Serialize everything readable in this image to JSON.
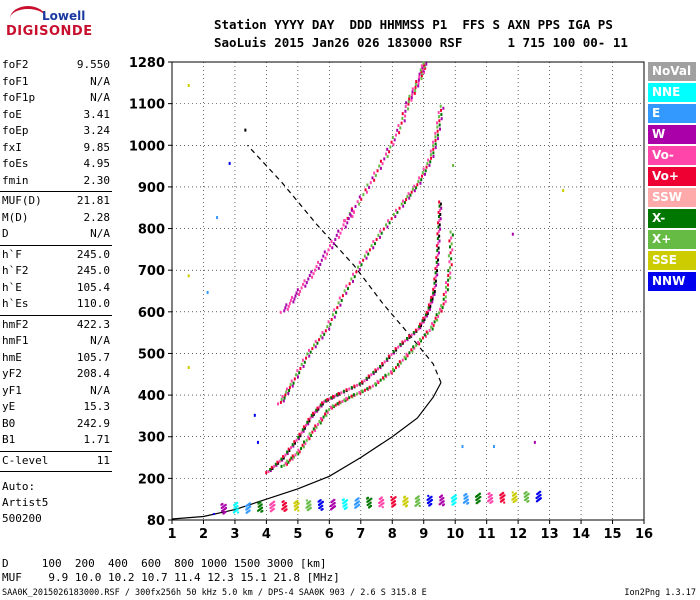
{
  "logo": {
    "top": "Lowell",
    "bottom": "DIGISONDE"
  },
  "header": {
    "line1": "Station YYYY DAY  DDD HHMMSS P1  FFS S AXN PPS IGA PS",
    "line2": "SaoLuis 2015 Jan26 026 183000 RSF      1 715 100 00- 11"
  },
  "params_group1": [
    {
      "name": "foF2",
      "value": "9.550"
    },
    {
      "name": "foF1",
      "value": "N/A"
    },
    {
      "name": "foF1p",
      "value": "N/A"
    },
    {
      "name": "foE",
      "value": "3.41"
    },
    {
      "name": "foEp",
      "value": "3.24"
    },
    {
      "name": "fxI",
      "value": "9.85"
    },
    {
      "name": "foEs",
      "value": "4.95"
    },
    {
      "name": "fmin",
      "value": "2.30"
    }
  ],
  "params_group2": [
    {
      "name": "MUF(D)",
      "value": "21.81"
    },
    {
      "name": "M(D)",
      "value": "2.28"
    },
    {
      "name": "D",
      "value": "N/A"
    }
  ],
  "params_group3": [
    {
      "name": "h`F",
      "value": "245.0"
    },
    {
      "name": "h`F2",
      "value": "245.0"
    },
    {
      "name": "h`E",
      "value": "105.4"
    },
    {
      "name": "h`Es",
      "value": "110.0"
    }
  ],
  "params_group4": [
    {
      "name": "hmF2",
      "value": "422.3"
    },
    {
      "name": "hmF1",
      "value": "N/A"
    },
    {
      "name": "hmE",
      "value": "105.7"
    },
    {
      "name": "yF2",
      "value": "208.4"
    },
    {
      "name": "yF1",
      "value": "N/A"
    },
    {
      "name": "yE",
      "value": "15.3"
    },
    {
      "name": "B0",
      "value": "242.9"
    },
    {
      "name": "B1",
      "value": "1.71"
    }
  ],
  "params_group5": [
    {
      "name": "C-level",
      "value": "11"
    }
  ],
  "auto_info": [
    "Auto:",
    "Artist5",
    "500200"
  ],
  "footer": {
    "d_line": "D     100  200  400  600  800 1000 1500 3000 [km]",
    "muf_line": "MUF    9.9 10.0 10.2 10.7 11.4 12.3 15.1 21.8 [MHz]",
    "file_line": "SAA0K_2015026183000.RSF / 300fx256h 50 kHz 5.0 km / DPS-4 SAA0K 903 / 2.6 S 315.8 E",
    "version": "Ion2Png 1.3.17"
  },
  "legend": [
    {
      "label": "NoVal",
      "bg": "#a0a0a0",
      "fg": "#ffffff"
    },
    {
      "label": "NNE",
      "bg": "#00ffff",
      "fg": "#ffffff"
    },
    {
      "label": "E",
      "bg": "#3399ff",
      "fg": "#ffffff"
    },
    {
      "label": "W",
      "bg": "#aa00aa",
      "fg": "#ffffff"
    },
    {
      "label": "Vo-",
      "bg": "#ff44aa",
      "fg": "#ffffff"
    },
    {
      "label": "Vo+",
      "bg": "#ee0033",
      "fg": "#ffffff"
    },
    {
      "label": "SSW",
      "bg": "#ffaaaa",
      "fg": "#ffffff"
    },
    {
      "label": "X-",
      "bg": "#007700",
      "fg": "#ffffff"
    },
    {
      "label": "X+",
      "bg": "#66bb44",
      "fg": "#ffffff"
    },
    {
      "label": "SSE",
      "bg": "#cccc00",
      "fg": "#ffffff"
    },
    {
      "label": "NNW",
      "bg": "#0000ee",
      "fg": "#ffffff"
    }
  ],
  "chart_data": {
    "type": "scatter",
    "title": "",
    "xlabel": "",
    "ylabel": "",
    "xlim": [
      1,
      16
    ],
    "ylim": [
      80,
      1280
    ],
    "x_ticks": [
      "1",
      "2",
      "3",
      "4",
      "5",
      "6",
      "7",
      "8",
      "9",
      "10",
      "11",
      "12",
      "13",
      "14",
      "15",
      "16"
    ],
    "y_ticks": [
      "80",
      "200",
      "300",
      "400",
      "500",
      "600",
      "700",
      "800",
      "900",
      "1000",
      "1100",
      "1280"
    ],
    "y_tick_values": [
      80,
      200,
      300,
      400,
      500,
      600,
      700,
      800,
      900,
      1000,
      1100,
      1280
    ],
    "grid": true,
    "profile_line": [
      [
        1,
        83
      ],
      [
        2,
        90
      ],
      [
        3,
        110
      ],
      [
        4,
        140
      ],
      [
        5,
        170
      ],
      [
        6,
        205
      ],
      [
        7,
        250
      ],
      [
        8,
        300
      ],
      [
        8.8,
        345
      ],
      [
        9.3,
        395
      ],
      [
        9.55,
        430
      ]
    ],
    "profile_dashed": [
      [
        9.55,
        430
      ],
      [
        9.3,
        475
      ],
      [
        8.6,
        540
      ],
      [
        7.7,
        620
      ],
      [
        6.8,
        710
      ],
      [
        5.6,
        810
      ],
      [
        4.5,
        910
      ],
      [
        3.4,
        1000
      ]
    ],
    "o_trace": [
      [
        4,
        215
      ],
      [
        4.5,
        250
      ],
      [
        5,
        300
      ],
      [
        5.4,
        350
      ],
      [
        5.8,
        385
      ],
      [
        6.3,
        405
      ],
      [
        7,
        430
      ],
      [
        7.6,
        470
      ],
      [
        8.2,
        520
      ],
      [
        8.8,
        560
      ],
      [
        9.1,
        600
      ],
      [
        9.3,
        650
      ],
      [
        9.4,
        720
      ],
      [
        9.45,
        800
      ],
      [
        9.5,
        870
      ]
    ],
    "x_trace": [
      [
        4.5,
        230
      ],
      [
        5,
        265
      ],
      [
        5.5,
        320
      ],
      [
        6,
        370
      ],
      [
        6.6,
        395
      ],
      [
        7.3,
        420
      ],
      [
        8,
        460
      ],
      [
        8.6,
        510
      ],
      [
        9.2,
        560
      ],
      [
        9.6,
        620
      ],
      [
        9.8,
        700
      ],
      [
        9.85,
        800
      ]
    ],
    "o2_trace": [
      [
        4.4,
        380
      ],
      [
        4.8,
        430
      ],
      [
        5.3,
        500
      ],
      [
        5.9,
        560
      ],
      [
        6.4,
        640
      ],
      [
        7,
        720
      ],
      [
        7.6,
        790
      ],
      [
        8.3,
        860
      ],
      [
        8.8,
        910
      ],
      [
        9.2,
        970
      ],
      [
        9.4,
        1030
      ],
      [
        9.55,
        1100
      ]
    ],
    "o3_trace": [
      [
        6.5,
        820
      ],
      [
        7.2,
        900
      ],
      [
        7.8,
        980
      ],
      [
        8.3,
        1060
      ],
      [
        8.6,
        1140
      ],
      [
        8.9,
        1230
      ],
      [
        9.0,
        1280
      ]
    ],
    "o4_trace": [
      [
        4.5,
        600
      ],
      [
        5.0,
        650
      ],
      [
        5.6,
        710
      ],
      [
        6.2,
        780
      ],
      [
        6.8,
        850
      ]
    ],
    "es_trace": [
      [
        2.3,
        100
      ],
      [
        4,
        110
      ],
      [
        6,
        115
      ],
      [
        8,
        118
      ],
      [
        10,
        125
      ],
      [
        12.5,
        140
      ]
    ]
  }
}
